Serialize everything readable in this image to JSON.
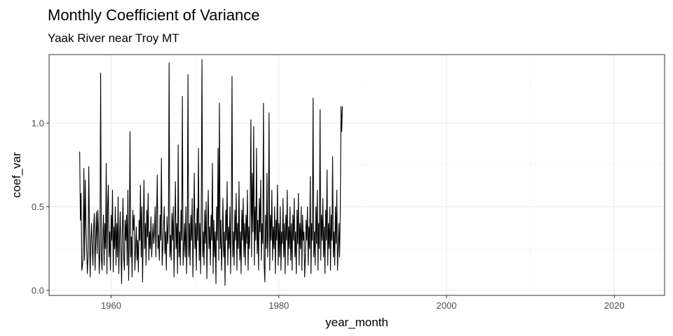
{
  "chart_data": {
    "type": "line",
    "title": "Monthly Coefficient of Variance",
    "subtitle": "Yaak River near Troy MT",
    "xlabel": "year_month",
    "ylabel": "coef_var",
    "xlim": [
      1952.6,
      2026.0
    ],
    "ylim": [
      -0.03,
      1.41
    ],
    "x_ticks": [
      1960,
      1980,
      2000,
      2020
    ],
    "x_tick_labels": [
      "1960",
      "1980",
      "2000",
      "2020"
    ],
    "y_ticks": [
      0.0,
      0.5,
      1.0
    ],
    "y_tick_labels": [
      "0.0",
      "0.5",
      "1.0"
    ],
    "grid": true,
    "legend": "none",
    "series": [
      {
        "color": "#000000",
        "x_start": 1956.25,
        "x_step_months": 1,
        "values": [
          0.83,
          0.42,
          0.58,
          0.12,
          0.15,
          0.2,
          0.73,
          0.18,
          0.66,
          0.38,
          0.25,
          0.1,
          0.2,
          0.74,
          0.35,
          0.08,
          0.3,
          0.4,
          0.25,
          0.15,
          0.38,
          0.46,
          0.12,
          0.3,
          0.47,
          0.22,
          0.48,
          0.35,
          0.1,
          0.25,
          1.3,
          0.2,
          0.12,
          0.32,
          0.45,
          0.15,
          0.4,
          0.25,
          0.76,
          0.1,
          0.5,
          0.63,
          0.2,
          0.35,
          0.12,
          0.45,
          0.3,
          0.6,
          0.11,
          0.38,
          0.25,
          0.5,
          0.15,
          0.4,
          0.2,
          0.56,
          0.1,
          0.3,
          0.47,
          0.25,
          0.04,
          0.35,
          0.55,
          0.2,
          0.12,
          0.42,
          0.3,
          0.45,
          0.15,
          0.6,
          0.06,
          0.28,
          0.95,
          0.2,
          0.32,
          0.08,
          0.48,
          0.36,
          0.45,
          0.12,
          0.25,
          0.38,
          0.18,
          0.3,
          0.11,
          0.42,
          0.3,
          0.63,
          0.2,
          0.5,
          0.05,
          0.35,
          0.66,
          0.25,
          0.4,
          0.15,
          0.48,
          0.32,
          0.58,
          0.18,
          0.35,
          0.25,
          0.44,
          0.2,
          0.3,
          0.4,
          0.28,
          0.35,
          0.5,
          0.2,
          0.42,
          0.69,
          0.25,
          0.33,
          0.18,
          0.45,
          0.3,
          0.79,
          0.15,
          0.25,
          0.38,
          0.5,
          0.22,
          0.35,
          0.12,
          0.44,
          0.28,
          0.4,
          1.36,
          0.2,
          0.33,
          0.18,
          0.46,
          0.3,
          0.5,
          0.08,
          0.35,
          0.65,
          0.25,
          0.4,
          0.1,
          0.87,
          0.2,
          0.35,
          0.15,
          0.48,
          0.3,
          1.16,
          0.15,
          0.25,
          0.4,
          0.2,
          0.5,
          0.1,
          0.35,
          1.29,
          0.2,
          0.4,
          0.15,
          0.45,
          0.3,
          0.55,
          0.08,
          0.35,
          0.7,
          0.25,
          0.4,
          0.12,
          0.49,
          0.3,
          0.85,
          0.18,
          0.4,
          0.1,
          0.5,
          1.38,
          0.2,
          0.35,
          0.15,
          0.48,
          0.28,
          0.53,
          0.07,
          0.35,
          0.6,
          0.25,
          0.38,
          0.15,
          0.45,
          0.3,
          0.76,
          0.1,
          0.42,
          0.2,
          0.35,
          0.04,
          0.5,
          0.3,
          0.85,
          0.18,
          1.12,
          0.25,
          0.42,
          0.12,
          0.3,
          0.55,
          0.2,
          0.35,
          0.03,
          0.48,
          0.3,
          0.65,
          0.15,
          0.38,
          0.25,
          0.5,
          0.1,
          0.42,
          1.28,
          0.2,
          0.35,
          0.15,
          0.48,
          0.3,
          0.58,
          0.12,
          0.4,
          0.25,
          0.65,
          0.18,
          0.35,
          0.1,
          0.48,
          0.3,
          0.55,
          0.2,
          0.4,
          0.15,
          0.45,
          0.28,
          0.6,
          0.12,
          0.38,
          0.25,
          0.5,
          1.02,
          0.2,
          0.7,
          0.35,
          0.98,
          0.15,
          0.5,
          0.3,
          0.85,
          0.22,
          0.42,
          0.12,
          0.55,
          0.35,
          0.66,
          0.18,
          0.4,
          0.28,
          1.12,
          0.15,
          0.05,
          0.45,
          0.25,
          0.7,
          0.2,
          0.35,
          1.06,
          0.12,
          0.45,
          0.3,
          0.6,
          0.18,
          0.38,
          0.25,
          0.5,
          0.1,
          0.42,
          0.3,
          0.63,
          0.15,
          0.4,
          0.2,
          0.5,
          0.12,
          0.35,
          0.28,
          0.55,
          0.2,
          0.4,
          0.1,
          0.45,
          0.3,
          0.6,
          0.15,
          0.38,
          0.25,
          0.5,
          0.18,
          0.4,
          0.12,
          0.45,
          0.3,
          0.55,
          0.2,
          0.35,
          0.1,
          0.48,
          0.28,
          0.58,
          0.15,
          0.4,
          0.25,
          0.5,
          0.12,
          0.45,
          0.3,
          0.35,
          0.08,
          0.2,
          0.42,
          0.3,
          0.5,
          0.15,
          0.38,
          0.25,
          0.68,
          0.1,
          0.4,
          0.3,
          1.15,
          0.2,
          0.35,
          0.15,
          0.5,
          0.28,
          0.6,
          0.12,
          0.4,
          0.25,
          1.08,
          0.18,
          0.45,
          0.3,
          0.55,
          0.2,
          0.38,
          0.1,
          0.48,
          0.3,
          0.72,
          0.15,
          0.4,
          0.25,
          0.5,
          0.12,
          0.45,
          0.3,
          0.8,
          0.2,
          0.35,
          0.15,
          0.5,
          0.28,
          0.6,
          0.12,
          0.25,
          0.4,
          0.2,
          0.5,
          1.1,
          0.95,
          1.1
        ]
      }
    ]
  }
}
